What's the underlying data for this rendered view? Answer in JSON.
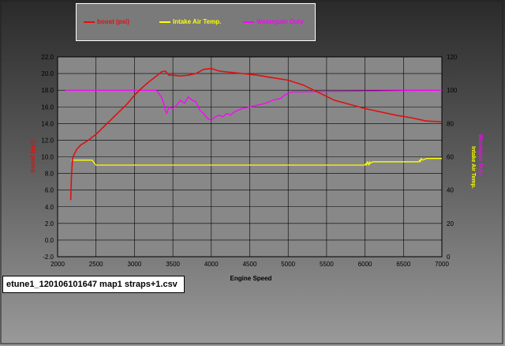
{
  "colors": {
    "boost": "#e01010",
    "iat": "#ffff00",
    "wgdc": "#ff00ff",
    "axis_text": "#000000"
  },
  "legend": {
    "items": [
      {
        "label": "boost (psi)",
        "color": "#e01010"
      },
      {
        "label": "Intake Air Temp.",
        "color": "#ffff00"
      },
      {
        "label": "Wastegate Duty",
        "color": "#ff00ff"
      }
    ]
  },
  "file_label": "etune1_120106101647 map1 straps+1.csv",
  "chart_data": {
    "type": "line",
    "xlabel": "Engine Speed",
    "y_left_label": "boost (psi)",
    "y_right_label_1": "Intake Air Temp.",
    "y_right_label_2": "Wastegate Duty",
    "xlim": [
      2000,
      7000
    ],
    "ylim_left": [
      -2.0,
      22.0
    ],
    "ylim_right": [
      0,
      120
    ],
    "x_ticks": [
      "2000",
      "2500",
      "3000",
      "3500",
      "4000",
      "4500",
      "5000",
      "5500",
      "6000",
      "6500",
      "7000"
    ],
    "y_left_ticks": [
      "-2.0",
      "0.0",
      "2.0",
      "4.0",
      "6.0",
      "8.0",
      "10.0",
      "12.0",
      "14.0",
      "16.0",
      "18.0",
      "20.0",
      "22.0"
    ],
    "y_right_ticks": [
      "0",
      "20",
      "40",
      "60",
      "80",
      "100",
      "120"
    ],
    "grid": true,
    "series": [
      {
        "name": "boost (psi)",
        "axis": "left",
        "color": "#e01010",
        "x": [
          2170,
          2175,
          2180,
          2190,
          2200,
          2250,
          2300,
          2400,
          2500,
          2600,
          2700,
          2800,
          2900,
          3000,
          3100,
          3200,
          3300,
          3350,
          3400,
          3450,
          3500,
          3600,
          3700,
          3800,
          3900,
          4000,
          4100,
          4200,
          4400,
          4600,
          4800,
          5000,
          5200,
          5400,
          5600,
          5800,
          6000,
          6200,
          6400,
          6600,
          6800,
          7000
        ],
        "y": [
          4.8,
          6.0,
          7.5,
          9.2,
          10.0,
          10.9,
          11.4,
          12.0,
          12.7,
          13.6,
          14.5,
          15.4,
          16.3,
          17.4,
          18.3,
          19.1,
          19.8,
          20.2,
          20.3,
          19.8,
          19.8,
          19.7,
          19.8,
          20.0,
          20.5,
          20.6,
          20.3,
          20.2,
          20.0,
          19.8,
          19.5,
          19.2,
          18.6,
          17.7,
          16.8,
          16.3,
          15.8,
          15.4,
          15.0,
          14.7,
          14.3,
          14.2
        ]
      },
      {
        "name": "Intake Air Temp.",
        "axis": "right",
        "color": "#ffff00",
        "x": [
          2180,
          2450,
          2480,
          2500,
          3000,
          3500,
          4000,
          4500,
          5000,
          5500,
          6000,
          6010,
          6020,
          6030,
          6050,
          6060,
          6070,
          6100,
          6300,
          6500,
          6700,
          6710,
          6720,
          6730,
          6750,
          6800,
          7000
        ],
        "y": [
          58,
          58,
          56,
          55,
          55,
          55,
          55,
          55,
          55,
          55,
          55,
          56,
          55,
          57,
          55,
          57,
          56,
          57,
          57,
          57,
          57,
          58,
          57,
          59,
          58,
          59,
          59
        ]
      },
      {
        "name": "Wastegate Duty",
        "axis": "right",
        "color": "#ff00ff",
        "x": [
          2100,
          3000,
          3200,
          3280,
          3300,
          3350,
          3380,
          3400,
          3420,
          3450,
          3500,
          3550,
          3600,
          3650,
          3700,
          3750,
          3800,
          3850,
          3900,
          3950,
          4000,
          4050,
          4100,
          4150,
          4200,
          4250,
          4300,
          4400,
          4500,
          4600,
          4700,
          4800,
          4900,
          4950,
          5000,
          5050,
          7000
        ],
        "y": [
          100,
          100,
          100,
          100,
          99,
          96,
          92,
          88,
          86,
          90,
          89,
          91,
          94,
          92,
          96,
          94,
          93,
          88,
          86,
          83,
          82,
          84,
          85,
          84,
          86,
          85,
          87,
          89,
          90,
          91,
          92,
          94,
          95,
          97,
          98,
          99,
          100
        ]
      }
    ]
  }
}
